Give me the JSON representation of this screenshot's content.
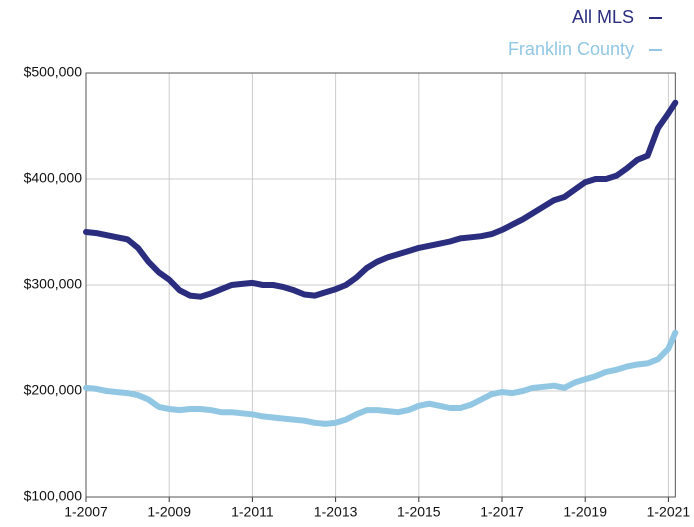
{
  "chart_data": {
    "type": "line",
    "x": [
      "1-2007",
      "4-2007",
      "7-2007",
      "10-2007",
      "1-2008",
      "4-2008",
      "7-2008",
      "10-2008",
      "1-2009",
      "4-2009",
      "7-2009",
      "10-2009",
      "1-2010",
      "4-2010",
      "7-2010",
      "10-2010",
      "1-2011",
      "4-2011",
      "7-2011",
      "10-2011",
      "1-2012",
      "4-2012",
      "7-2012",
      "10-2012",
      "1-2013",
      "4-2013",
      "7-2013",
      "10-2013",
      "1-2014",
      "4-2014",
      "7-2014",
      "10-2014",
      "1-2015",
      "4-2015",
      "7-2015",
      "10-2015",
      "1-2016",
      "4-2016",
      "7-2016",
      "10-2016",
      "1-2017",
      "4-2017",
      "7-2017",
      "10-2017",
      "1-2018",
      "4-2018",
      "7-2018",
      "10-2018",
      "1-2019",
      "4-2019",
      "7-2019",
      "10-2019",
      "1-2020",
      "4-2020",
      "7-2020",
      "10-2020",
      "1-2021",
      "3-2021"
    ],
    "series": [
      {
        "name": "All MLS",
        "color": "#2b2d7e",
        "values": [
          350000,
          349000,
          347000,
          345000,
          343000,
          335000,
          322000,
          312000,
          305000,
          295000,
          290000,
          289000,
          292000,
          296000,
          300000,
          301000,
          302000,
          300000,
          300000,
          298000,
          295000,
          291000,
          290000,
          293000,
          296000,
          300000,
          307000,
          316000,
          322000,
          326000,
          329000,
          332000,
          335000,
          337000,
          339000,
          341000,
          344000,
          345000,
          346000,
          348000,
          352000,
          357000,
          362000,
          368000,
          374000,
          380000,
          383000,
          390000,
          397000,
          400000,
          400000,
          403000,
          410000,
          418000,
          422000,
          448000,
          462000,
          472000
        ]
      },
      {
        "name": "Franklin County",
        "color": "#92c7e4",
        "values": [
          203000,
          202000,
          200000,
          199000,
          198000,
          196000,
          192000,
          185000,
          183000,
          182000,
          183000,
          183000,
          182000,
          180000,
          180000,
          179000,
          178000,
          176000,
          175000,
          174000,
          173000,
          172000,
          170000,
          169000,
          170000,
          173000,
          178000,
          182000,
          182000,
          181000,
          180000,
          182000,
          186000,
          188000,
          186000,
          184000,
          184000,
          187000,
          192000,
          197000,
          199000,
          198000,
          200000,
          203000,
          204000,
          205000,
          203000,
          208000,
          211000,
          214000,
          218000,
          220000,
          223000,
          225000,
          226000,
          230000,
          240000,
          255000
        ]
      }
    ],
    "xlim": [
      "1-2007",
      "3-2021"
    ],
    "xticks": [
      "1-2007",
      "1-2009",
      "1-2011",
      "1-2013",
      "1-2015",
      "1-2017",
      "1-2019",
      "1-2021"
    ],
    "ylim": [
      100000,
      500000
    ],
    "yticks": [
      {
        "value": 100000,
        "label": "$100,000"
      },
      {
        "value": 200000,
        "label": "$200,000"
      },
      {
        "value": 300000,
        "label": "$300,000"
      },
      {
        "value": 400000,
        "label": "$400,000"
      },
      {
        "value": 500000,
        "label": "$500,000"
      }
    ],
    "grid": true,
    "legend": "top-right"
  }
}
